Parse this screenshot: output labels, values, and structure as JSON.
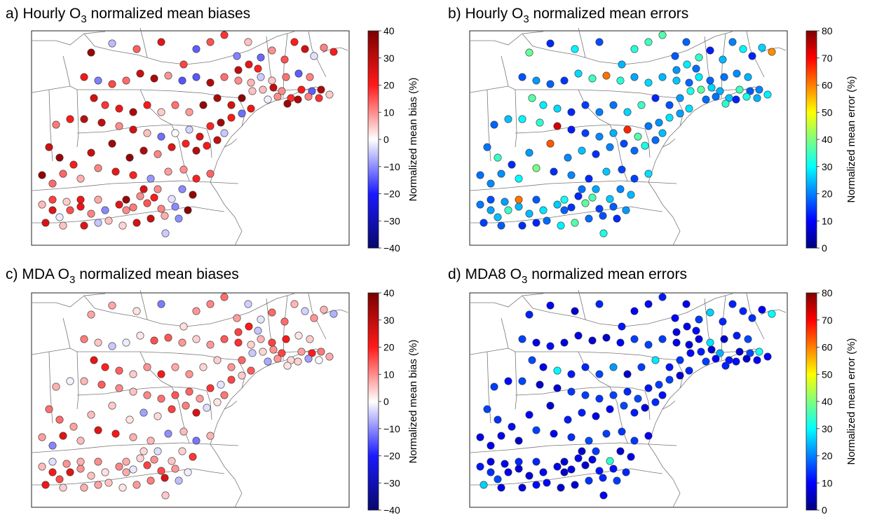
{
  "panels": [
    {
      "id": "a",
      "title_prefix": "a) Hourly O",
      "title_sub": "3",
      "title_suffix": " normalized mean biases",
      "colorbar": {
        "label": "Normalized mean bias (%)",
        "ticks": [
          "40",
          "30",
          "20",
          "10",
          "0",
          "−10",
          "−20",
          "−30",
          "−40"
        ],
        "min": -40,
        "max": 40,
        "scale": "diverging",
        "colors": [
          "#08086b",
          "#1a1aff",
          "#ffffff",
          "#ff1a1a",
          "#7a0000"
        ]
      }
    },
    {
      "id": "b",
      "title_prefix": "b) Hourly O",
      "title_sub": "3",
      "title_suffix": " normalized mean errors",
      "colorbar": {
        "label": "Normalized mean error (%)",
        "ticks": [
          "80",
          "70",
          "60",
          "50",
          "40",
          "30",
          "20",
          "10",
          "0"
        ],
        "min": 0,
        "max": 80,
        "scale": "jet",
        "colors": [
          "#00007f",
          "#0000ff",
          "#007fff",
          "#00ffff",
          "#7fff7f",
          "#ffff00",
          "#ff7f00",
          "#ff0000",
          "#7f0000"
        ]
      }
    },
    {
      "id": "c",
      "title_prefix": "c) MDA O",
      "title_sub": "3",
      "title_suffix": " normalized mean biases",
      "colorbar": {
        "label": "Normalized mean bias (%)",
        "ticks": [
          "40",
          "30",
          "20",
          "10",
          "0",
          "−10",
          "−20",
          "−30",
          "−40"
        ],
        "min": -40,
        "max": 40,
        "scale": "diverging",
        "colors": [
          "#08086b",
          "#1a1aff",
          "#ffffff",
          "#ff1a1a",
          "#7a0000"
        ]
      }
    },
    {
      "id": "d",
      "title_prefix": "d) MDA8 O",
      "title_sub": "3",
      "title_suffix": " normalized mean errors",
      "colorbar": {
        "label": "Normalized mean error (%)",
        "ticks": [
          "80",
          "70",
          "60",
          "50",
          "40",
          "30",
          "20",
          "10",
          "0"
        ],
        "min": 0,
        "max": 80,
        "scale": "jet",
        "colors": [
          "#00007f",
          "#0000ff",
          "#007fff",
          "#00ffff",
          "#7fff7f",
          "#ffff00",
          "#ff7f00",
          "#ff0000",
          "#7f0000"
        ]
      }
    }
  ]
}
